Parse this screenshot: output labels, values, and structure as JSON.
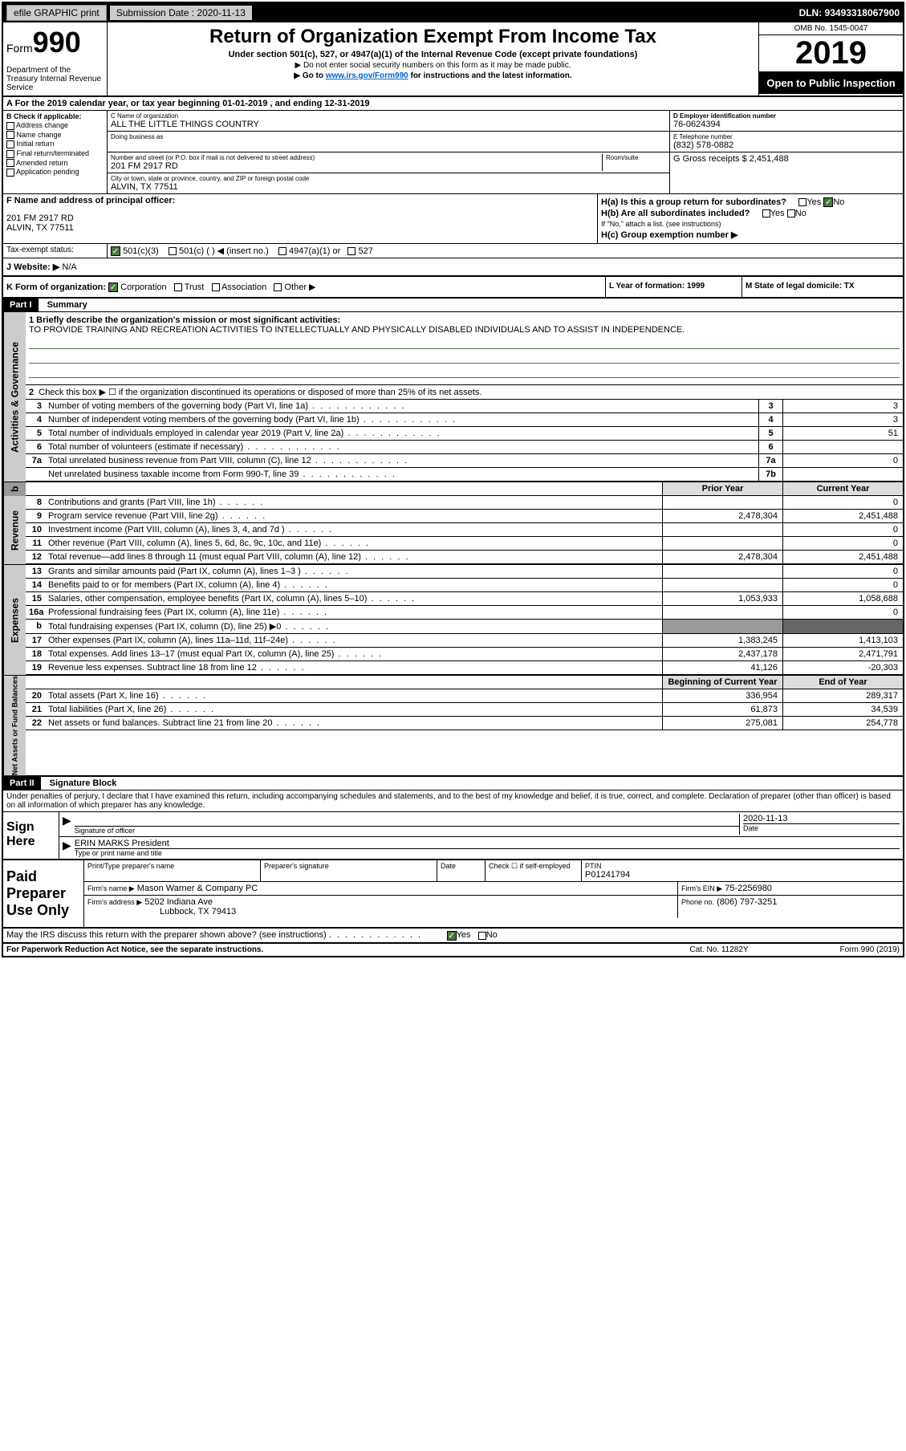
{
  "topbar": {
    "efile": "efile GRAPHIC print",
    "submission_label": "Submission Date : 2020-11-13",
    "dln": "DLN: 93493318067900"
  },
  "header": {
    "form_label": "Form",
    "form_num": "990",
    "title": "Return of Organization Exempt From Income Tax",
    "subtitle": "Under section 501(c), 527, or 4947(a)(1) of the Internal Revenue Code (except private foundations)",
    "note1": "▶ Do not enter social security numbers on this form as it may be made public.",
    "note2_pre": "▶ Go to ",
    "note2_link": "www.irs.gov/Form990",
    "note2_post": " for instructions and the latest information.",
    "dept": "Department of the Treasury Internal Revenue Service",
    "omb": "OMB No. 1545-0047",
    "year": "2019",
    "open": "Open to Public Inspection"
  },
  "period": "A For the 2019 calendar year, or tax year beginning 01-01-2019     , and ending 12-31-2019",
  "section_b": {
    "label": "B Check if applicable:",
    "addr_change": "Address change",
    "name_change": "Name change",
    "initial": "Initial return",
    "final": "Final return/terminated",
    "amended": "Amended return",
    "app_pending": "Application pending"
  },
  "section_c": {
    "name_label": "C Name of organization",
    "name": "ALL THE LITTLE THINGS COUNTRY",
    "dba_label": "Doing business as",
    "addr_label": "Number and street (or P.O. box if mail is not delivered to street address)",
    "room_label": "Room/suite",
    "addr": "201 FM 2917 RD",
    "city_label": "City or town, state or province, country, and ZIP or foreign postal code",
    "city": "ALVIN, TX  77511"
  },
  "section_d": {
    "ein_label": "D Employer identification number",
    "ein": "76-0624394"
  },
  "section_e": {
    "tel_label": "E Telephone number",
    "tel": "(832) 578-0882"
  },
  "section_g": {
    "label": "G Gross receipts $ 2,451,488"
  },
  "section_f": {
    "label": "F  Name and address of principal officer:",
    "addr1": "201 FM 2917 RD",
    "addr2": "ALVIN, TX  77511"
  },
  "section_h": {
    "ha": "H(a)  Is this a group return for subordinates?",
    "hb": "H(b)  Are all subordinates included?",
    "hb_note": "If \"No,\" attach a list. (see instructions)",
    "hc": "H(c)  Group exemption number ▶",
    "yes": "Yes",
    "no": "No"
  },
  "tax_status": {
    "label": "Tax-exempt status:",
    "c3": "501(c)(3)",
    "c_other": "501(c) (   ) ◀ (insert no.)",
    "a1": "4947(a)(1) or",
    "s527": "527"
  },
  "section_j": {
    "label": "J   Website: ▶",
    "val": "N/A"
  },
  "section_k": {
    "label": "K Form of organization:",
    "corp": "Corporation",
    "trust": "Trust",
    "assoc": "Association",
    "other": "Other ▶"
  },
  "section_l": {
    "label": "L Year of formation: 1999"
  },
  "section_m": {
    "label": "M State of legal domicile: TX"
  },
  "part1": {
    "hdr": "Part I",
    "title": "Summary",
    "line1_label": "1  Briefly describe the organization's mission or most significant activities:",
    "line1_text": "TO PROVIDE TRAINING AND RECREATION ACTIVITIES TO INTELLECTUALLY AND PHYSICALLY DISABLED INDIVIDUALS AND TO ASSIST IN INDEPENDENCE.",
    "line2": "Check this box ▶ ☐  if the organization discontinued its operations or disposed of more than 25% of its net assets.",
    "tabs": {
      "activities": "Activities & Governance",
      "revenue": "Revenue",
      "expenses": "Expenses",
      "netassets": "Net Assets or Fund Balances"
    },
    "rows": [
      {
        "n": "3",
        "d": "Number of voting members of the governing body (Part VI, line 1a)",
        "box": "3",
        "v": "3"
      },
      {
        "n": "4",
        "d": "Number of independent voting members of the governing body (Part VI, line 1b)",
        "box": "4",
        "v": "3"
      },
      {
        "n": "5",
        "d": "Total number of individuals employed in calendar year 2019 (Part V, line 2a)",
        "box": "5",
        "v": "51"
      },
      {
        "n": "6",
        "d": "Total number of volunteers (estimate if necessary)",
        "box": "6",
        "v": ""
      },
      {
        "n": "7a",
        "d": "Total unrelated business revenue from Part VIII, column (C), line 12",
        "box": "7a",
        "v": "0"
      },
      {
        "n": "",
        "d": "Net unrelated business taxable income from Form 990-T, line 39",
        "box": "7b",
        "v": ""
      }
    ],
    "col_prior": "Prior Year",
    "col_current": "Current Year",
    "rev_rows": [
      {
        "n": "8",
        "d": "Contributions and grants (Part VIII, line 1h)",
        "p": "",
        "c": "0"
      },
      {
        "n": "9",
        "d": "Program service revenue (Part VIII, line 2g)",
        "p": "2,478,304",
        "c": "2,451,488"
      },
      {
        "n": "10",
        "d": "Investment income (Part VIII, column (A), lines 3, 4, and 7d )",
        "p": "",
        "c": "0"
      },
      {
        "n": "11",
        "d": "Other revenue (Part VIII, column (A), lines 5, 6d, 8c, 9c, 10c, and 11e)",
        "p": "",
        "c": "0"
      },
      {
        "n": "12",
        "d": "Total revenue—add lines 8 through 11 (must equal Part VIII, column (A), line 12)",
        "p": "2,478,304",
        "c": "2,451,488"
      }
    ],
    "exp_rows": [
      {
        "n": "13",
        "d": "Grants and similar amounts paid (Part IX, column (A), lines 1–3 )",
        "p": "",
        "c": "0"
      },
      {
        "n": "14",
        "d": "Benefits paid to or for members (Part IX, column (A), line 4)",
        "p": "",
        "c": "0"
      },
      {
        "n": "15",
        "d": "Salaries, other compensation, employee benefits (Part IX, column (A), lines 5–10)",
        "p": "1,053,933",
        "c": "1,058,688"
      },
      {
        "n": "16a",
        "d": "Professional fundraising fees (Part IX, column (A), line 11e)",
        "p": "",
        "c": "0"
      },
      {
        "n": "b",
        "d": "Total fundraising expenses (Part IX, column (D), line 25) ▶0",
        "p": "grey",
        "c": "grey"
      },
      {
        "n": "17",
        "d": "Other expenses (Part IX, column (A), lines 11a–11d, 11f–24e)",
        "p": "1,383,245",
        "c": "1,413,103"
      },
      {
        "n": "18",
        "d": "Total expenses. Add lines 13–17 (must equal Part IX, column (A), line 25)",
        "p": "2,437,178",
        "c": "2,471,791"
      },
      {
        "n": "19",
        "d": "Revenue less expenses. Subtract line 18 from line 12",
        "p": "41,126",
        "c": "-20,303"
      }
    ],
    "col_begin": "Beginning of Current Year",
    "col_end": "End of Year",
    "na_rows": [
      {
        "n": "20",
        "d": "Total assets (Part X, line 16)",
        "p": "336,954",
        "c": "289,317"
      },
      {
        "n": "21",
        "d": "Total liabilities (Part X, line 26)",
        "p": "61,873",
        "c": "34,539"
      },
      {
        "n": "22",
        "d": "Net assets or fund balances. Subtract line 21 from line 20",
        "p": "275,081",
        "c": "254,778"
      }
    ]
  },
  "part2": {
    "hdr": "Part II",
    "title": "Signature Block",
    "decl": "Under penalties of perjury, I declare that I have examined this return, including accompanying schedules and statements, and to the best of my knowledge and belief, it is true, correct, and complete. Declaration of preparer (other than officer) is based on all information of which preparer has any knowledge.",
    "sign_here": "Sign Here",
    "sig_officer": "Signature of officer",
    "sig_date_label": "Date",
    "sig_date": "2020-11-13",
    "officer_name": "ERIN MARKS President",
    "type_name": "Type or print name and title",
    "paid_prep": "Paid Preparer Use Only",
    "prep_name_label": "Print/Type preparer's name",
    "prep_sig_label": "Preparer's signature",
    "date_label": "Date",
    "check_self": "Check ☐ if self-employed",
    "ptin_label": "PTIN",
    "ptin": "P01241794",
    "firm_name_label": "Firm's name      ▶",
    "firm_name": "Mason Warner & Company PC",
    "firm_ein_label": "Firm's EIN ▶",
    "firm_ein": "75-2256980",
    "firm_addr_label": "Firm's address ▶",
    "firm_addr1": "5202 Indiana Ave",
    "firm_addr2": "Lubbock, TX  79413",
    "phone_label": "Phone no.",
    "phone": "(806) 797-3251",
    "discuss": "May the IRS discuss this return with the preparer shown above? (see instructions)",
    "yes": "Yes",
    "no": "No"
  },
  "footer": {
    "left": "For Paperwork Reduction Act Notice, see the separate instructions.",
    "mid": "Cat. No. 11282Y",
    "right": "Form 990 (2019)"
  }
}
